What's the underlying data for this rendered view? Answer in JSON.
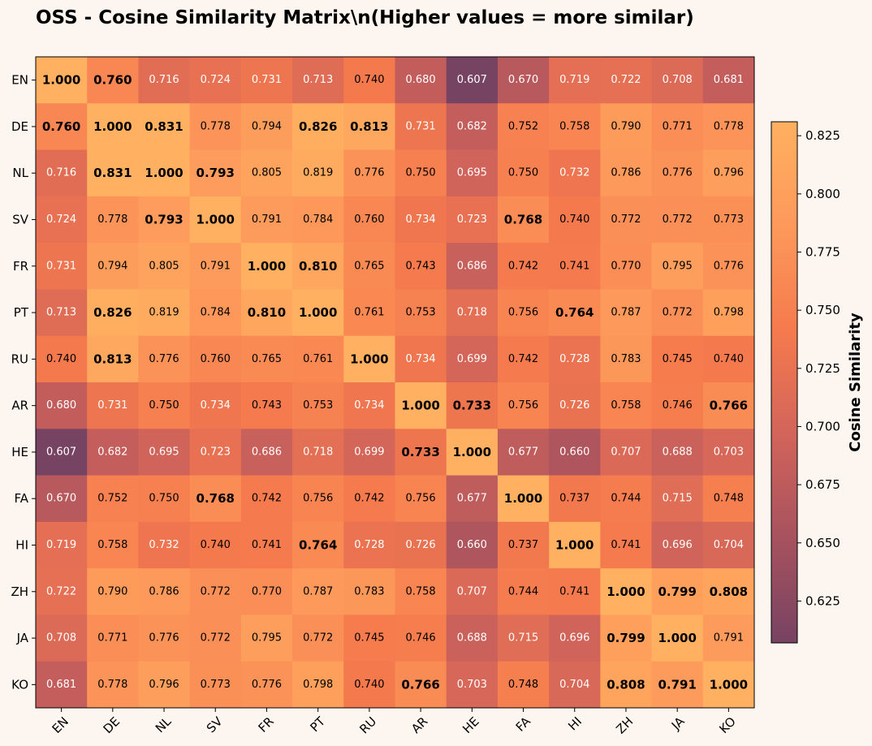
{
  "chart_data": {
    "type": "heatmap",
    "title": "OSS - Cosine Similarity Matrix\\n(Higher values = more similar)",
    "labels": [
      "EN",
      "DE",
      "NL",
      "SV",
      "FR",
      "PT",
      "RU",
      "AR",
      "HE",
      "FA",
      "HI",
      "ZH",
      "JA",
      "KO"
    ],
    "matrix": [
      [
        1.0,
        0.76,
        0.716,
        0.724,
        0.731,
        0.713,
        0.74,
        0.68,
        0.607,
        0.67,
        0.719,
        0.722,
        0.708,
        0.681
      ],
      [
        0.76,
        1.0,
        0.831,
        0.778,
        0.794,
        0.826,
        0.813,
        0.731,
        0.682,
        0.752,
        0.758,
        0.79,
        0.771,
        0.778
      ],
      [
        0.716,
        0.831,
        1.0,
        0.793,
        0.805,
        0.819,
        0.776,
        0.75,
        0.695,
        0.75,
        0.732,
        0.786,
        0.776,
        0.796
      ],
      [
        0.724,
        0.778,
        0.793,
        1.0,
        0.791,
        0.784,
        0.76,
        0.734,
        0.723,
        0.768,
        0.74,
        0.772,
        0.772,
        0.773
      ],
      [
        0.731,
        0.794,
        0.805,
        0.791,
        1.0,
        0.81,
        0.765,
        0.743,
        0.686,
        0.742,
        0.741,
        0.77,
        0.795,
        0.776
      ],
      [
        0.713,
        0.826,
        0.819,
        0.784,
        0.81,
        1.0,
        0.761,
        0.753,
        0.718,
        0.756,
        0.764,
        0.787,
        0.772,
        0.798
      ],
      [
        0.74,
        0.813,
        0.776,
        0.76,
        0.765,
        0.761,
        1.0,
        0.734,
        0.699,
        0.742,
        0.728,
        0.783,
        0.745,
        0.74
      ],
      [
        0.68,
        0.731,
        0.75,
        0.734,
        0.743,
        0.753,
        0.734,
        1.0,
        0.733,
        0.756,
        0.726,
        0.758,
        0.746,
        0.766
      ],
      [
        0.607,
        0.682,
        0.695,
        0.723,
        0.686,
        0.718,
        0.699,
        0.733,
        1.0,
        0.677,
        0.66,
        0.707,
        0.688,
        0.703
      ],
      [
        0.67,
        0.752,
        0.75,
        0.768,
        0.742,
        0.756,
        0.742,
        0.756,
        0.677,
        1.0,
        0.737,
        0.744,
        0.715,
        0.748
      ],
      [
        0.719,
        0.758,
        0.732,
        0.74,
        0.741,
        0.764,
        0.728,
        0.726,
        0.66,
        0.737,
        1.0,
        0.741,
        0.696,
        0.704
      ],
      [
        0.722,
        0.79,
        0.786,
        0.772,
        0.77,
        0.787,
        0.783,
        0.758,
        0.707,
        0.744,
        0.741,
        1.0,
        0.799,
        0.808
      ],
      [
        0.708,
        0.771,
        0.776,
        0.772,
        0.795,
        0.772,
        0.745,
        0.746,
        0.688,
        0.715,
        0.696,
        0.799,
        1.0,
        0.791
      ],
      [
        0.681,
        0.778,
        0.796,
        0.773,
        0.776,
        0.798,
        0.74,
        0.766,
        0.703,
        0.748,
        0.704,
        0.808,
        0.791,
        1.0
      ]
    ],
    "bold": [
      [
        0,
        0
      ],
      [
        0,
        1
      ],
      [
        1,
        0
      ],
      [
        1,
        1
      ],
      [
        1,
        2
      ],
      [
        1,
        5
      ],
      [
        1,
        6
      ],
      [
        2,
        1
      ],
      [
        2,
        2
      ],
      [
        2,
        3
      ],
      [
        3,
        2
      ],
      [
        3,
        3
      ],
      [
        3,
        9
      ],
      [
        4,
        4
      ],
      [
        4,
        5
      ],
      [
        5,
        1
      ],
      [
        5,
        4
      ],
      [
        5,
        5
      ],
      [
        5,
        10
      ],
      [
        6,
        1
      ],
      [
        6,
        6
      ],
      [
        7,
        7
      ],
      [
        7,
        8
      ],
      [
        7,
        13
      ],
      [
        8,
        7
      ],
      [
        8,
        8
      ],
      [
        9,
        3
      ],
      [
        9,
        9
      ],
      [
        10,
        5
      ],
      [
        10,
        10
      ],
      [
        11,
        11
      ],
      [
        11,
        12
      ],
      [
        11,
        13
      ],
      [
        12,
        11
      ],
      [
        12,
        12
      ],
      [
        13,
        7
      ],
      [
        13,
        11
      ],
      [
        13,
        12
      ],
      [
        13,
        13
      ]
    ],
    "value_format": "3 decimals",
    "colorbar": {
      "label": "Cosine Similarity",
      "range": [
        0.607,
        0.831
      ],
      "ticks": [
        "0.625",
        "0.650",
        "0.675",
        "0.700",
        "0.725",
        "0.750",
        "0.775",
        "0.800",
        "0.825"
      ]
    },
    "colormap": {
      "stops": [
        "#774362",
        "#a7525f",
        "#d2645a",
        "#f57a4d",
        "#fd995b",
        "#ffb060"
      ]
    }
  }
}
